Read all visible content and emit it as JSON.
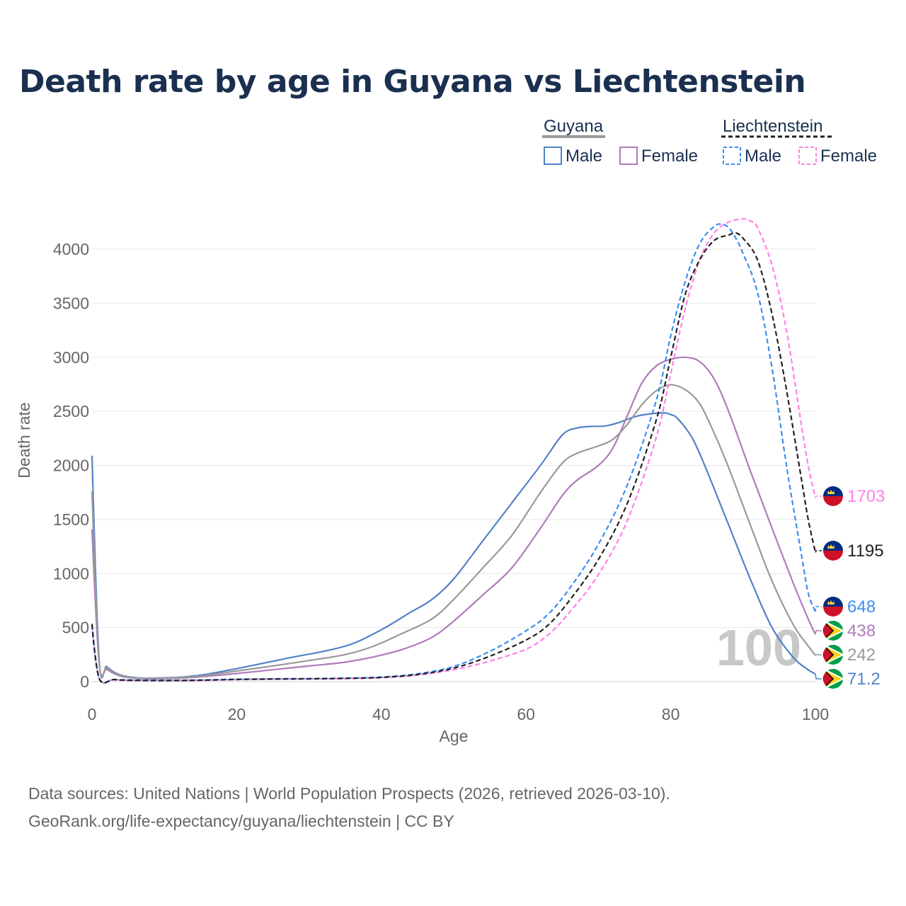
{
  "title": "Death rate by age in Guyana vs Liechtenstein",
  "legend": {
    "groups": [
      {
        "label": "Guyana",
        "items": [
          "Male",
          "Female"
        ]
      },
      {
        "label": "Liechtenstein",
        "items": [
          "Male",
          "Female"
        ]
      }
    ]
  },
  "watermark": "100",
  "source_line1": "Data sources: United Nations | World Population Prospects (2026, retrieved 2026-03-10).",
  "source_line2": "GeoRank.org/life-expectancy/guyana/liechtenstein | CC BY",
  "colors": {
    "guyana_male": "#5282c8",
    "guyana_female": "#b07bba",
    "guyana_total": "#9a9a9a",
    "liech_male": "#3b8ff0",
    "liech_female": "#ff80e8",
    "liech_total": "#222222",
    "title": "#1b3050",
    "axis_text": "#666666",
    "grid": "#e6e6e6"
  },
  "chart_data": {
    "type": "line",
    "xlabel": "Age",
    "ylabel": "Death rate",
    "xlim": [
      0,
      100
    ],
    "ylim": [
      0,
      4000
    ],
    "x_ticks": [
      "0",
      "20",
      "40",
      "60",
      "80",
      "100"
    ],
    "y_ticks": [
      "0",
      "500",
      "1000",
      "1500",
      "2000",
      "2500",
      "3000",
      "3500",
      "4000"
    ],
    "grid": true,
    "legend_position": "top-right",
    "series": [
      {
        "name": "Guyana Male",
        "country": "Guyana",
        "sex": "Male",
        "dash": false,
        "color_key": "guyana_male",
        "end_label": "71.2",
        "points": [
          [
            0,
            2090
          ],
          [
            1,
            190
          ],
          [
            2,
            140
          ],
          [
            3,
            90
          ],
          [
            4,
            60
          ],
          [
            5,
            45
          ],
          [
            7,
            32
          ],
          [
            10,
            35
          ],
          [
            13,
            45
          ],
          [
            16,
            70
          ],
          [
            20,
            120
          ],
          [
            24,
            175
          ],
          [
            28,
            230
          ],
          [
            32,
            280
          ],
          [
            36,
            350
          ],
          [
            40,
            480
          ],
          [
            44,
            640
          ],
          [
            47,
            760
          ],
          [
            50,
            950
          ],
          [
            54,
            1300
          ],
          [
            58,
            1650
          ],
          [
            62,
            2000
          ],
          [
            65,
            2280
          ],
          [
            67,
            2345
          ],
          [
            69,
            2360
          ],
          [
            71,
            2365
          ],
          [
            73,
            2400
          ],
          [
            75,
            2450
          ],
          [
            77,
            2475
          ],
          [
            79,
            2485
          ],
          [
            80,
            2470
          ],
          [
            81,
            2430
          ],
          [
            83,
            2250
          ],
          [
            85,
            1950
          ],
          [
            88,
            1450
          ],
          [
            91,
            950
          ],
          [
            94,
            500
          ],
          [
            97,
            220
          ],
          [
            99,
            110
          ],
          [
            100,
            71.2
          ]
        ]
      },
      {
        "name": "Guyana Female",
        "country": "Guyana",
        "sex": "Female",
        "dash": false,
        "color_key": "guyana_female",
        "end_label": "438",
        "points": [
          [
            0,
            1410
          ],
          [
            1,
            160
          ],
          [
            2,
            115
          ],
          [
            3,
            75
          ],
          [
            4,
            50
          ],
          [
            5,
            38
          ],
          [
            7,
            28
          ],
          [
            10,
            28
          ],
          [
            13,
            35
          ],
          [
            16,
            50
          ],
          [
            20,
            75
          ],
          [
            25,
            110
          ],
          [
            30,
            145
          ],
          [
            35,
            180
          ],
          [
            39,
            230
          ],
          [
            43,
            300
          ],
          [
            47,
            410
          ],
          [
            50,
            560
          ],
          [
            54,
            800
          ],
          [
            58,
            1050
          ],
          [
            62,
            1420
          ],
          [
            65,
            1720
          ],
          [
            67,
            1860
          ],
          [
            70,
            2000
          ],
          [
            72,
            2160
          ],
          [
            74,
            2460
          ],
          [
            76,
            2760
          ],
          [
            78,
            2920
          ],
          [
            80,
            2980
          ],
          [
            82,
            3000
          ],
          [
            84,
            2960
          ],
          [
            86,
            2800
          ],
          [
            88,
            2500
          ],
          [
            91,
            1950
          ],
          [
            94,
            1420
          ],
          [
            97,
            900
          ],
          [
            99,
            580
          ],
          [
            100,
            438
          ]
        ]
      },
      {
        "name": "Guyana Total",
        "country": "Guyana",
        "sex": "Both",
        "dash": false,
        "color_key": "guyana_total",
        "end_label": "242",
        "points": [
          [
            0,
            1760
          ],
          [
            1,
            175
          ],
          [
            2,
            128
          ],
          [
            3,
            82
          ],
          [
            4,
            55
          ],
          [
            5,
            42
          ],
          [
            7,
            30
          ],
          [
            10,
            32
          ],
          [
            13,
            40
          ],
          [
            16,
            60
          ],
          [
            20,
            98
          ],
          [
            25,
            145
          ],
          [
            30,
            195
          ],
          [
            35,
            250
          ],
          [
            39,
            330
          ],
          [
            43,
            450
          ],
          [
            47,
            580
          ],
          [
            50,
            760
          ],
          [
            54,
            1050
          ],
          [
            58,
            1350
          ],
          [
            62,
            1750
          ],
          [
            65,
            2020
          ],
          [
            67,
            2110
          ],
          [
            70,
            2180
          ],
          [
            72,
            2240
          ],
          [
            74,
            2380
          ],
          [
            76,
            2560
          ],
          [
            78,
            2690
          ],
          [
            80,
            2745
          ],
          [
            82,
            2700
          ],
          [
            84,
            2570
          ],
          [
            86,
            2300
          ],
          [
            88,
            1980
          ],
          [
            91,
            1450
          ],
          [
            94,
            930
          ],
          [
            97,
            520
          ],
          [
            99,
            330
          ],
          [
            100,
            242
          ]
        ]
      },
      {
        "name": "Liechtenstein Male",
        "country": "Liechtenstein",
        "sex": "Male",
        "dash": true,
        "color_key": "liech_male",
        "end_label": "648",
        "points": [
          [
            0,
            520
          ],
          [
            1,
            30
          ],
          [
            3,
            20
          ],
          [
            5,
            15
          ],
          [
            10,
            12
          ],
          [
            15,
            15
          ],
          [
            20,
            22
          ],
          [
            25,
            26
          ],
          [
            30,
            28
          ],
          [
            35,
            32
          ],
          [
            40,
            42
          ],
          [
            45,
            72
          ],
          [
            50,
            140
          ],
          [
            55,
            280
          ],
          [
            60,
            470
          ],
          [
            63,
            620
          ],
          [
            66,
            860
          ],
          [
            70,
            1270
          ],
          [
            74,
            1820
          ],
          [
            78,
            2600
          ],
          [
            80,
            3200
          ],
          [
            82,
            3700
          ],
          [
            84,
            4050
          ],
          [
            86,
            4210
          ],
          [
            87,
            4230
          ],
          [
            88,
            4200
          ],
          [
            89,
            4100
          ],
          [
            90,
            3960
          ],
          [
            92,
            3600
          ],
          [
            94,
            2900
          ],
          [
            96,
            2000
          ],
          [
            98,
            1200
          ],
          [
            99,
            820
          ],
          [
            100,
            648
          ]
        ]
      },
      {
        "name": "Liechtenstein Female",
        "country": "Liechtenstein",
        "sex": "Female",
        "dash": true,
        "color_key": "liech_female",
        "end_label": "1703",
        "points": [
          [
            0,
            540
          ],
          [
            1,
            25
          ],
          [
            3,
            18
          ],
          [
            5,
            12
          ],
          [
            10,
            9
          ],
          [
            15,
            12
          ],
          [
            20,
            18
          ],
          [
            25,
            22
          ],
          [
            30,
            24
          ],
          [
            35,
            28
          ],
          [
            40,
            36
          ],
          [
            45,
            60
          ],
          [
            50,
            110
          ],
          [
            55,
            190
          ],
          [
            60,
            300
          ],
          [
            63,
            430
          ],
          [
            66,
            640
          ],
          [
            70,
            990
          ],
          [
            74,
            1490
          ],
          [
            78,
            2260
          ],
          [
            80,
            2850
          ],
          [
            82,
            3450
          ],
          [
            84,
            3900
          ],
          [
            86,
            4150
          ],
          [
            88,
            4250
          ],
          [
            90,
            4280
          ],
          [
            91,
            4260
          ],
          [
            92,
            4200
          ],
          [
            94,
            3850
          ],
          [
            96,
            3250
          ],
          [
            98,
            2400
          ],
          [
            99,
            2000
          ],
          [
            100,
            1703
          ]
        ]
      },
      {
        "name": "Liechtenstein Total",
        "country": "Liechtenstein",
        "sex": "Both",
        "dash": true,
        "color_key": "liech_total",
        "end_label": "1195",
        "points": [
          [
            0,
            530
          ],
          [
            1,
            28
          ],
          [
            3,
            19
          ],
          [
            5,
            13
          ],
          [
            10,
            10
          ],
          [
            15,
            13
          ],
          [
            20,
            20
          ],
          [
            25,
            24
          ],
          [
            30,
            26
          ],
          [
            35,
            30
          ],
          [
            40,
            39
          ],
          [
            45,
            66
          ],
          [
            50,
            125
          ],
          [
            55,
            235
          ],
          [
            60,
            385
          ],
          [
            63,
            520
          ],
          [
            66,
            750
          ],
          [
            70,
            1130
          ],
          [
            74,
            1650
          ],
          [
            78,
            2420
          ],
          [
            80,
            3000
          ],
          [
            82,
            3580
          ],
          [
            84,
            3900
          ],
          [
            86,
            4080
          ],
          [
            88,
            4130
          ],
          [
            89,
            4150
          ],
          [
            90,
            4100
          ],
          [
            92,
            3900
          ],
          [
            94,
            3400
          ],
          [
            96,
            2700
          ],
          [
            98,
            1900
          ],
          [
            99,
            1500
          ],
          [
            100,
            1195
          ]
        ]
      }
    ]
  }
}
